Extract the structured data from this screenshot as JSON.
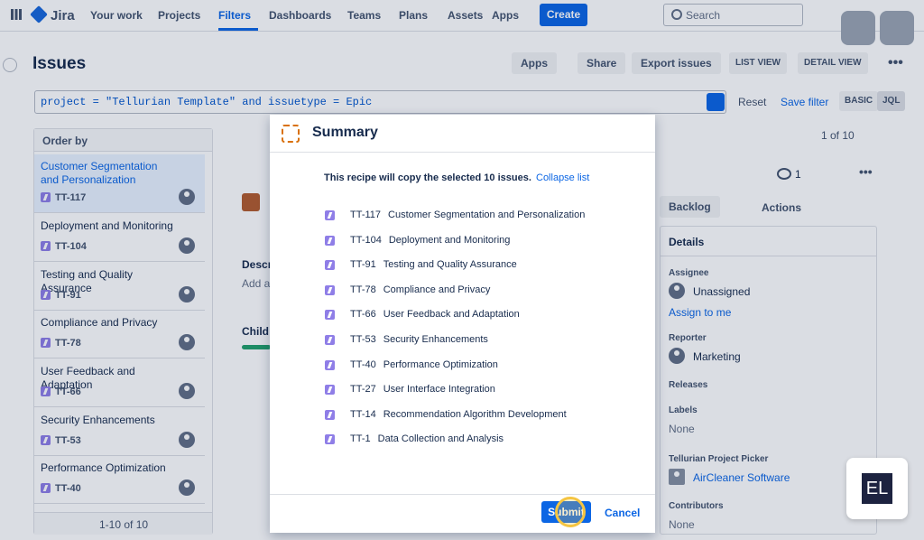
{
  "nav": {
    "product": "Jira",
    "items": [
      "Your work",
      "Projects",
      "Filters",
      "Dashboards",
      "Teams",
      "Plans",
      "Assets",
      "Apps"
    ],
    "create": "Create",
    "search": "Search"
  },
  "page": {
    "title": "Issues",
    "actions": [
      "Apps",
      "Share",
      "Export issues"
    ],
    "views": [
      "LIST VIEW",
      "DETAIL VIEW"
    ]
  },
  "query": {
    "text": "project = \"Tellurian Template\" and issuetype = Epic",
    "reset": "Reset",
    "save": "Save filter",
    "modes": [
      "BASIC",
      "JQL"
    ]
  },
  "list": {
    "order": "Order by",
    "issues": [
      {
        "title": "Customer Segmentation and Personalization",
        "key": "TT-117"
      },
      {
        "title": "Deployment and Monitoring",
        "key": "TT-104"
      },
      {
        "title": "Testing and Quality Assurance",
        "key": "TT-91"
      },
      {
        "title": "Compliance and Privacy",
        "key": "TT-78"
      },
      {
        "title": "User Feedback and Adaptation",
        "key": "TT-66"
      },
      {
        "title": "Security Enhancements",
        "key": "TT-53"
      },
      {
        "title": "Performance Optimization",
        "key": "TT-40"
      }
    ],
    "pager": "1-10 of 10"
  },
  "detail": {
    "count": "1 of 10",
    "watchers": "1",
    "status": "Backlog",
    "actions": "Actions",
    "descr": "Descr",
    "add": "Add a",
    "child": "Child",
    "panel": {
      "title": "Details",
      "fields": [
        {
          "label": "Assignee",
          "value": "Unassigned",
          "link": "Assign to me"
        },
        {
          "label": "Reporter",
          "value": "Marketing"
        },
        {
          "label": "Releases"
        },
        {
          "label": "Labels",
          "value": "None"
        },
        {
          "label": "Tellurian Project Picker",
          "value": "AirCleaner Software"
        },
        {
          "label": "Contributors",
          "value": "None"
        }
      ]
    }
  },
  "modal": {
    "title": "Summary",
    "intro": "This recipe will copy the selected 10 issues.",
    "collapse": "Collapse list",
    "items": [
      {
        "key": "TT-117",
        "title": "Customer Segmentation and Personalization"
      },
      {
        "key": "TT-104",
        "title": "Deployment and Monitoring"
      },
      {
        "key": "TT-91",
        "title": "Testing and Quality Assurance"
      },
      {
        "key": "TT-78",
        "title": "Compliance and Privacy"
      },
      {
        "key": "TT-66",
        "title": "User Feedback and Adaptation"
      },
      {
        "key": "TT-53",
        "title": "Security Enhancements"
      },
      {
        "key": "TT-40",
        "title": "Performance Optimization"
      },
      {
        "key": "TT-27",
        "title": "User Interface Integration"
      },
      {
        "key": "TT-14",
        "title": "Recommendation Algorithm Development"
      },
      {
        "key": "TT-1",
        "title": "Data Collection and Analysis"
      }
    ],
    "submit": "Submit",
    "cancel": "Cancel"
  },
  "badge": "EL"
}
